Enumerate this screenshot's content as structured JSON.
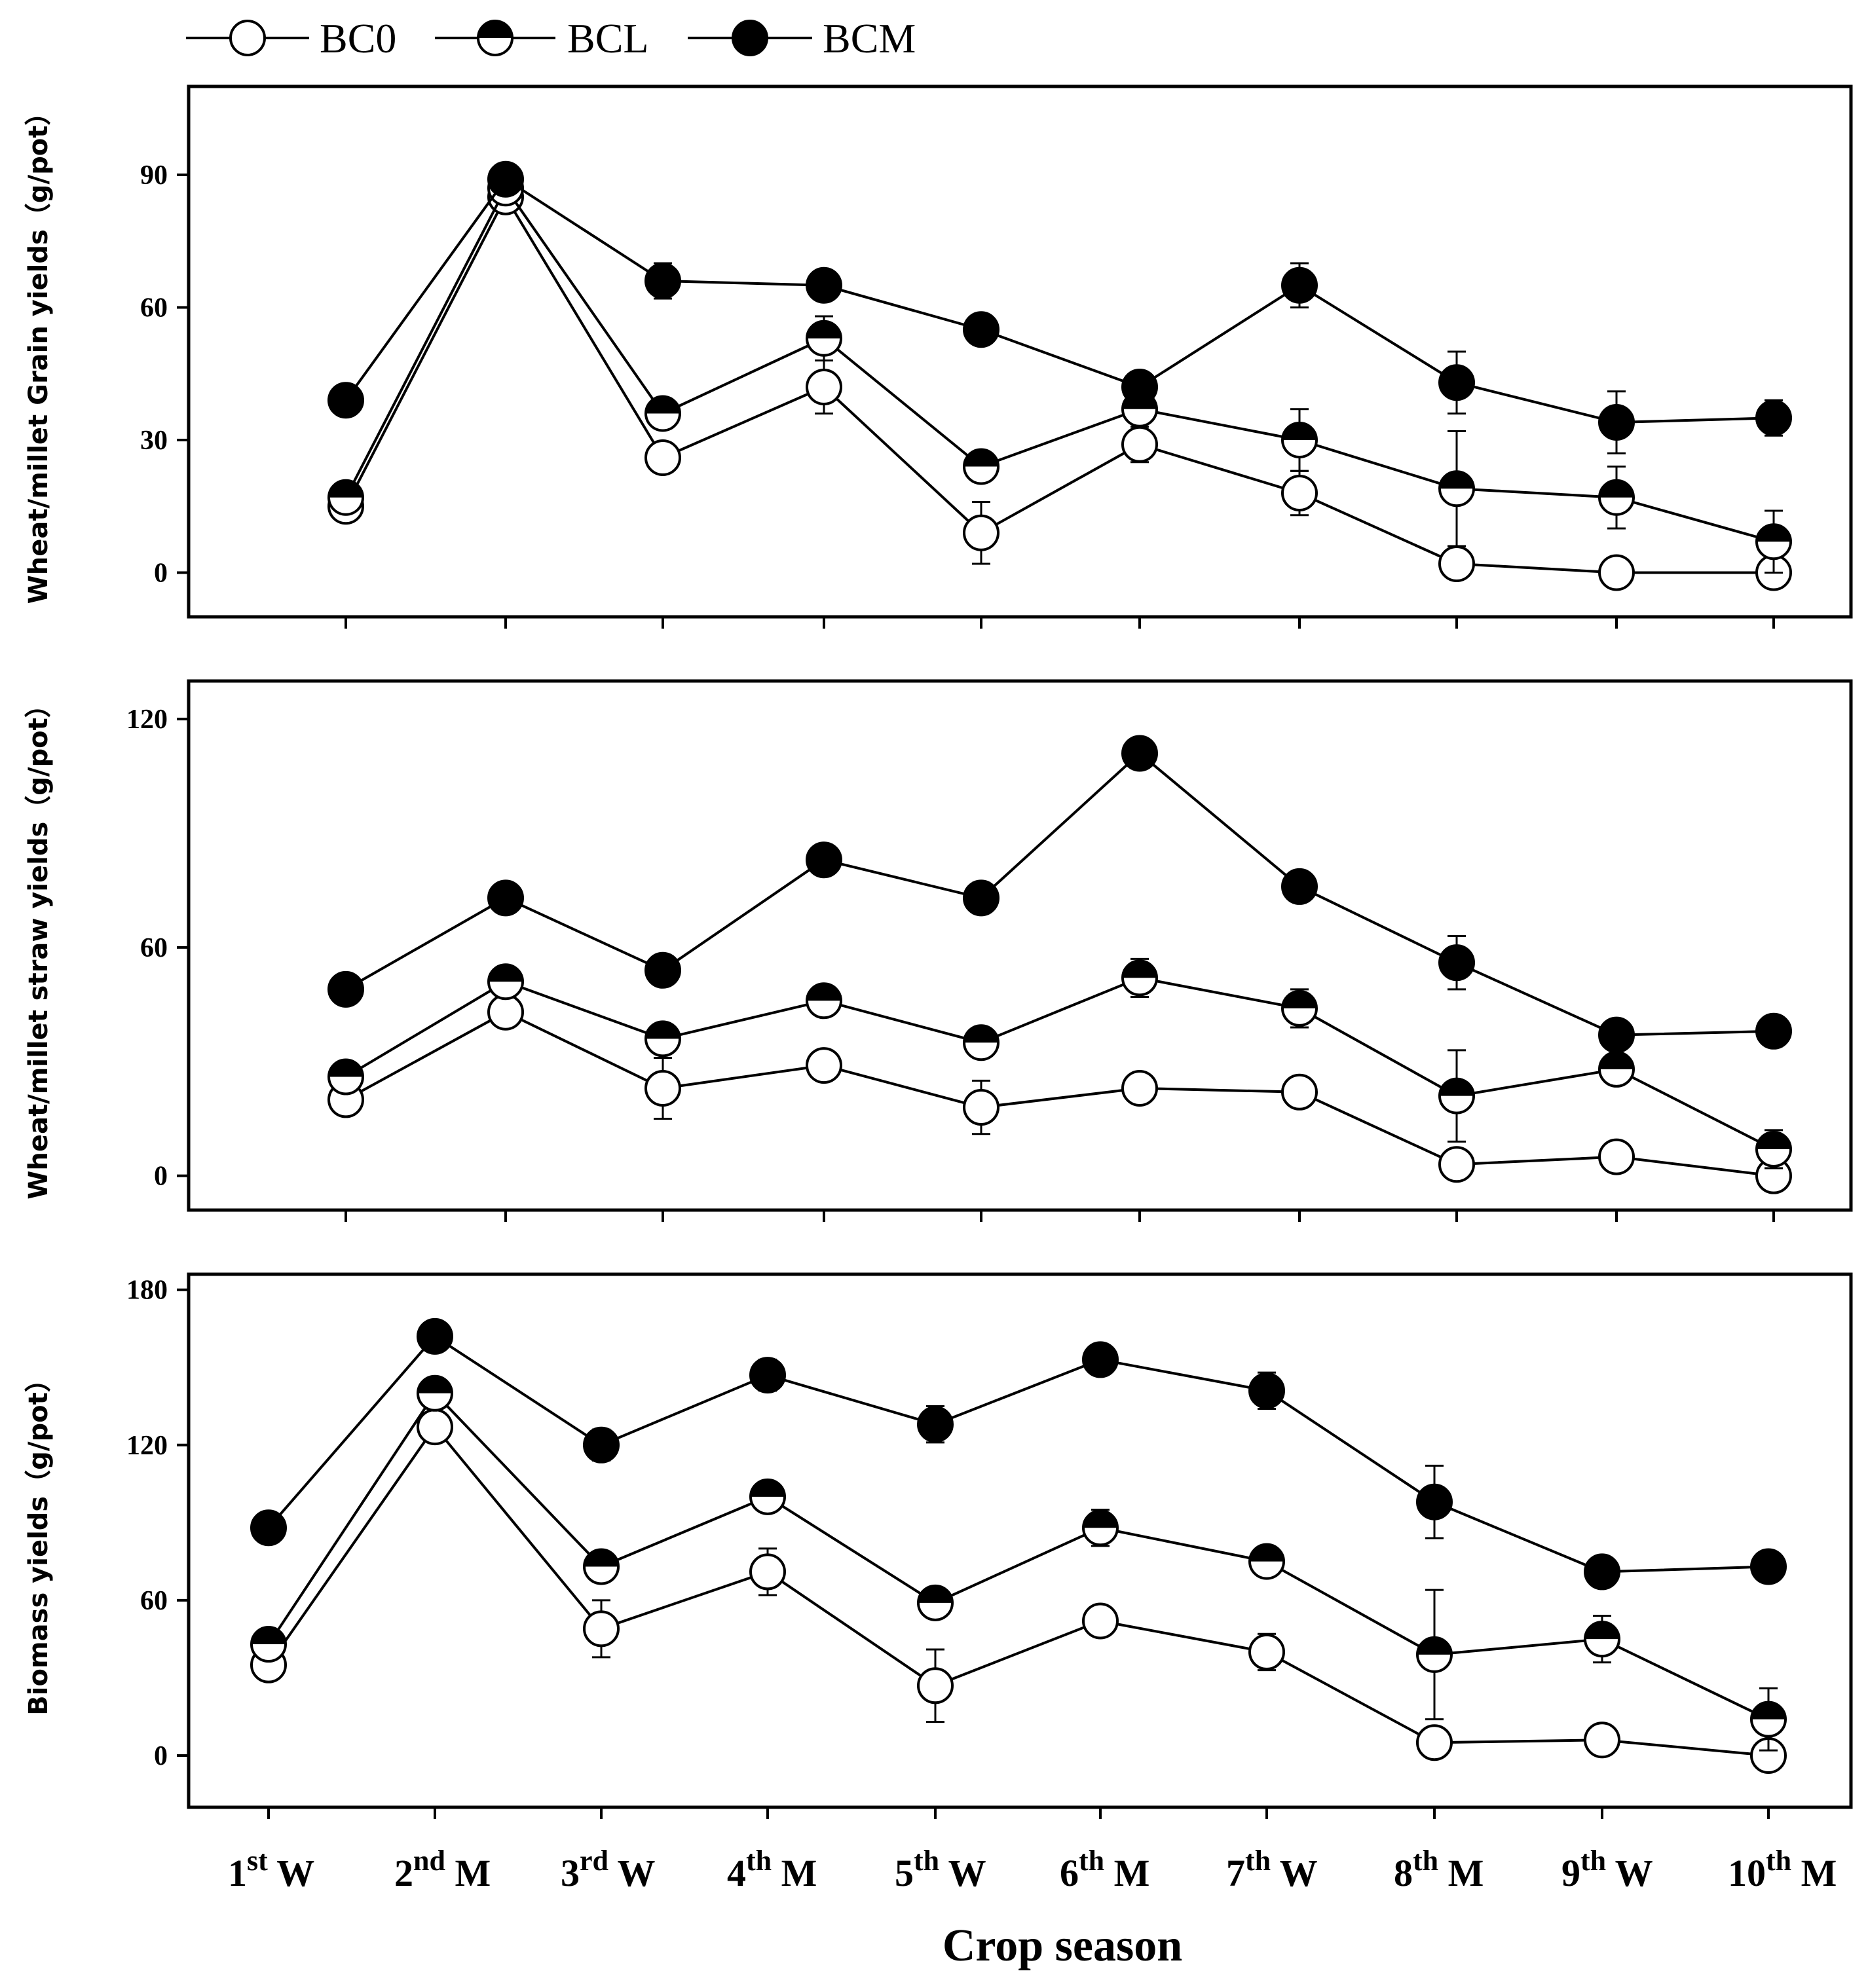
{
  "chart_data": {
    "type": "line",
    "categories": [
      "1st W",
      "2nd M",
      "3rd W",
      "4th M",
      "5th W",
      "6th M",
      "7th W",
      "8th M",
      "9th W",
      "10th M"
    ],
    "category_parts": [
      {
        "num": "1",
        "sup": "st",
        "crop": "W"
      },
      {
        "num": "2",
        "sup": "nd",
        "crop": "M"
      },
      {
        "num": "3",
        "sup": "rd",
        "crop": "W"
      },
      {
        "num": "4",
        "sup": "th",
        "crop": "M"
      },
      {
        "num": "5",
        "sup": "th",
        "crop": "W"
      },
      {
        "num": "6",
        "sup": "th",
        "crop": "M"
      },
      {
        "num": "7",
        "sup": "th",
        "crop": "W"
      },
      {
        "num": "8",
        "sup": "th",
        "crop": "M"
      },
      {
        "num": "9",
        "sup": "th",
        "crop": "W"
      },
      {
        "num": "10",
        "sup": "th",
        "crop": "M"
      }
    ],
    "xlabel": "Crop season",
    "legend": [
      {
        "name": "BC0",
        "marker": "open"
      },
      {
        "name": "BCL",
        "marker": "half"
      },
      {
        "name": "BCM",
        "marker": "filled"
      }
    ],
    "panels": [
      {
        "id": "grain",
        "ylabel": "Wheat/millet Grain yields（g/pot）",
        "yticks": [
          0,
          30,
          60,
          90
        ],
        "ylim": [
          -10,
          110
        ],
        "series": [
          {
            "name": "BC0",
            "values": [
              15,
              85,
              26,
              42,
              9,
              29,
              18,
              2,
              0,
              0
            ],
            "err": [
              1,
              1,
              3,
              6,
              7,
              4,
              5,
              3,
              2,
              1
            ]
          },
          {
            "name": "BCL",
            "values": [
              17,
              87,
              36,
              53,
              24,
              37,
              30,
              19,
              17,
              7
            ],
            "err": [
              1,
              1,
              2,
              5,
              2,
              2,
              7,
              13,
              7,
              7
            ]
          },
          {
            "name": "BCM",
            "values": [
              39,
              89,
              66,
              65,
              55,
              42,
              65,
              43,
              34,
              35
            ],
            "err": [
              1,
              1,
              4,
              2,
              1,
              2,
              5,
              7,
              7,
              4
            ]
          }
        ]
      },
      {
        "id": "straw",
        "ylabel": "Wheat/millet straw yields（g/pot）",
        "yticks": [
          0,
          60,
          120
        ],
        "ylim": [
          -9,
          130
        ],
        "series": [
          {
            "name": "BC0",
            "values": [
              20,
              43,
              23,
              29,
              18,
              23,
              22,
              3,
              5,
              0
            ],
            "err": [
              2,
              3,
              8,
              2,
              7,
              2,
              2,
              2,
              2,
              1
            ]
          },
          {
            "name": "BCL",
            "values": [
              26,
              51,
              36,
              46,
              35,
              52,
              44,
              21,
              28,
              7
            ],
            "err": [
              1,
              2,
              2,
              3,
              2,
              5,
              5,
              12,
              2,
              5
            ]
          },
          {
            "name": "BCM",
            "values": [
              49,
              73,
              54,
              83,
              73,
              111,
              76,
              56,
              37,
              38
            ],
            "err": [
              1,
              3,
              2,
              4,
              4,
              1,
              1,
              7,
              2,
              4
            ]
          }
        ]
      },
      {
        "id": "biomass",
        "ylabel": "Biomass yields（g/pot）",
        "yticks": [
          0,
          60,
          120,
          180
        ],
        "ylim": [
          -20,
          186
        ],
        "series": [
          {
            "name": "BC0",
            "values": [
              35,
              127,
              49,
              71,
              27,
              52,
              40,
              5,
              6,
              0
            ],
            "err": [
              2,
              2,
              11,
              9,
              14,
              5,
              7,
              5,
              3,
              1
            ]
          },
          {
            "name": "BCL",
            "values": [
              43,
              140,
              73,
              100,
              59,
              88,
              75,
              39,
              45,
              14
            ],
            "err": [
              1,
              2,
              3,
              2,
              3,
              7,
              3,
              25,
              9,
              12
            ]
          },
          {
            "name": "BCM",
            "values": [
              88,
              162,
              120,
              147,
              128,
              153,
              141,
              98,
              71,
              73
            ],
            "err": [
              1,
              5,
              6,
              6,
              7,
              4,
              7,
              14,
              5,
              5
            ]
          }
        ]
      }
    ]
  }
}
